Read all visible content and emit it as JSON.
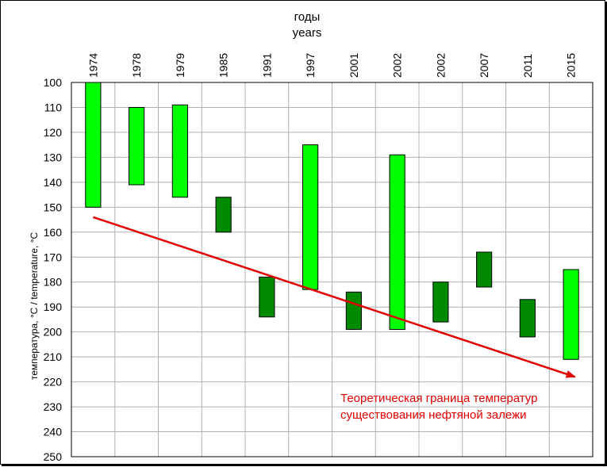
{
  "chart_data": {
    "type": "bar",
    "xlabel_ru": "годы",
    "xlabel_en": "years",
    "ylabel": "температура, °С /  temperature, °С",
    "categories": [
      "1974",
      "1978",
      "1979",
      "1985",
      "1991",
      "1997",
      "2001",
      "2002",
      "2002",
      "2007",
      "2011",
      "2015"
    ],
    "series": [
      {
        "values": [
          [
            100,
            150
          ],
          [
            110,
            141
          ],
          [
            109,
            146
          ],
          [
            146,
            160
          ],
          [
            178,
            194
          ],
          [
            125,
            183
          ],
          [
            184,
            199
          ],
          [
            129,
            199
          ],
          [
            180,
            196
          ],
          [
            168,
            182
          ],
          [
            187,
            202
          ],
          [
            175,
            211
          ]
        ]
      }
    ],
    "bar_colors": [
      "#00ff00",
      "#00ff00",
      "#00ff00",
      "#008a00",
      "#008a00",
      "#00ff00",
      "#008a00",
      "#00ff00",
      "#008a00",
      "#008a00",
      "#008a00",
      "#00ff00"
    ],
    "ylim": [
      100,
      250
    ],
    "y_inverted": true,
    "yticks": [
      100,
      110,
      120,
      130,
      140,
      150,
      160,
      170,
      180,
      190,
      200,
      210,
      220,
      230,
      240,
      250
    ],
    "grid": true,
    "trend_line": {
      "color": "#e00000",
      "start": {
        "category": "1974",
        "value": 154
      },
      "end": {
        "category": "2015",
        "value": 218
      }
    },
    "annotation": {
      "lines": [
        "Теоретическая граница температур",
        "существования нефтяной залежи"
      ],
      "color": "#e00000"
    }
  }
}
